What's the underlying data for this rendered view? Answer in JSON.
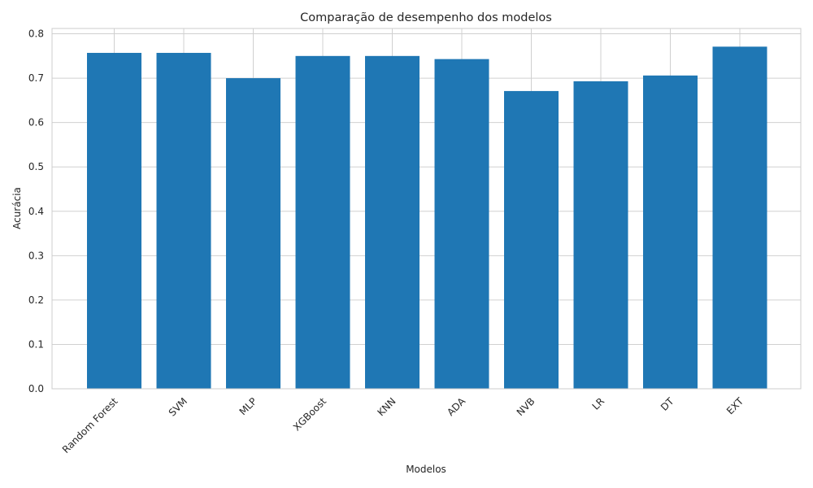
{
  "chart_data": {
    "type": "bar",
    "title": "Comparação de desempenho dos modelos",
    "xlabel": "Modelos",
    "ylabel": "Acurácia",
    "categories": [
      "Random Forest",
      "SVM",
      "MLP",
      "XGBoost",
      "KNN",
      "ADA",
      "NVB",
      "LR",
      "DT",
      "EXT"
    ],
    "values": [
      0.757,
      0.757,
      0.7,
      0.75,
      0.75,
      0.743,
      0.671,
      0.693,
      0.706,
      0.771
    ],
    "ylim": [
      0,
      0.812
    ],
    "yticks": [
      "0.0",
      "0.1",
      "0.2",
      "0.3",
      "0.4",
      "0.5",
      "0.6",
      "0.7",
      "0.8"
    ],
    "bar_color": "#1f77b4",
    "grid": true,
    "legend": "none"
  }
}
